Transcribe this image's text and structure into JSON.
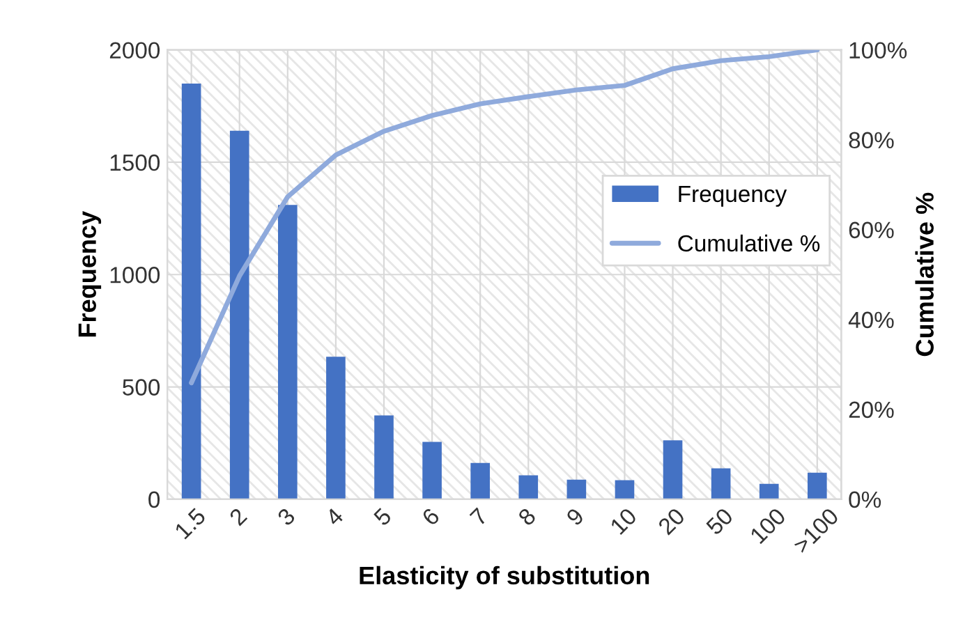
{
  "chart_data": {
    "type": "bar",
    "xlabel": "Elasticity of substitution",
    "ylabel": "Frequency",
    "y2label": "Cumulative %",
    "categories": [
      "1.5",
      "2",
      "3",
      "4",
      "5",
      "6",
      "7",
      "8",
      "9",
      "10",
      "20",
      "50",
      "100",
      ">100"
    ],
    "series": [
      {
        "name": "Frequency",
        "color": "#4472c4",
        "values": [
          1850,
          1640,
          1310,
          634,
          373,
          255,
          161,
          106,
          87,
          85,
          262,
          137,
          68,
          118
        ]
      },
      {
        "name": "Cumulative %",
        "type": "line",
        "axis": "y2",
        "color": "#8faadc",
        "values": [
          25.9,
          49.7,
          67.3,
          76.6,
          81.9,
          85.4,
          88.0,
          89.6,
          91.1,
          92.1,
          95.8,
          97.6,
          98.5,
          100
        ]
      }
    ],
    "ylim": [
      0,
      2000
    ],
    "yticks": [
      0,
      500,
      1000,
      1500,
      2000
    ],
    "y2lim": [
      0,
      100
    ],
    "y2ticks": [
      {
        "value": 0,
        "label": "0%"
      },
      {
        "value": 20,
        "label": "20%"
      },
      {
        "value": 40,
        "label": "40%"
      },
      {
        "value": 60,
        "label": "60%"
      },
      {
        "value": 80,
        "label": "80%"
      },
      {
        "value": 100,
        "label": "100%"
      }
    ],
    "grid": true,
    "legend": "right",
    "marker": "none",
    "line_style": "solid"
  }
}
